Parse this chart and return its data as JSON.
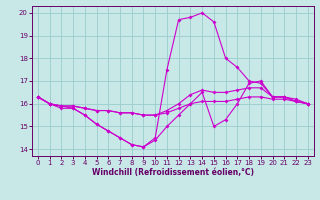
{
  "bg_color": "#c8e8e8",
  "line_color": "#cc00cc",
  "grid_color": "#99cccc",
  "xlabel": "Windchill (Refroidissement éolien,°C)",
  "xlabel_color": "#660066",
  "tick_color": "#660066",
  "xlim": [
    -0.5,
    23.5
  ],
  "ylim": [
    13.7,
    20.3
  ],
  "yticks": [
    14,
    15,
    16,
    17,
    18,
    19,
    20
  ],
  "xticks": [
    0,
    1,
    2,
    3,
    4,
    5,
    6,
    7,
    8,
    9,
    10,
    11,
    12,
    13,
    14,
    15,
    16,
    17,
    18,
    19,
    20,
    21,
    22,
    23
  ],
  "curves": [
    [
      16.3,
      16.0,
      15.8,
      15.8,
      15.5,
      15.1,
      14.8,
      14.5,
      14.2,
      14.1,
      14.4,
      15.0,
      15.5,
      16.0,
      16.5,
      15.0,
      15.3,
      16.0,
      16.9,
      17.0,
      16.3,
      16.3,
      16.1,
      16.0
    ],
    [
      16.3,
      16.0,
      15.9,
      15.9,
      15.8,
      15.7,
      15.7,
      15.6,
      15.6,
      15.5,
      15.5,
      15.6,
      15.8,
      16.0,
      16.1,
      16.1,
      16.1,
      16.2,
      16.3,
      16.3,
      16.2,
      16.2,
      16.1,
      16.0
    ],
    [
      16.3,
      16.0,
      15.9,
      15.9,
      15.8,
      15.7,
      15.7,
      15.6,
      15.6,
      15.5,
      15.5,
      15.7,
      16.0,
      16.4,
      16.6,
      16.5,
      16.5,
      16.6,
      16.7,
      16.7,
      16.3,
      16.3,
      16.2,
      16.0
    ],
    [
      16.3,
      16.0,
      15.9,
      15.8,
      15.5,
      15.1,
      14.8,
      14.5,
      14.2,
      14.1,
      14.5,
      17.5,
      19.7,
      19.8,
      20.0,
      19.6,
      18.0,
      17.6,
      17.0,
      16.9,
      16.3,
      16.3,
      16.1,
      16.0
    ]
  ]
}
